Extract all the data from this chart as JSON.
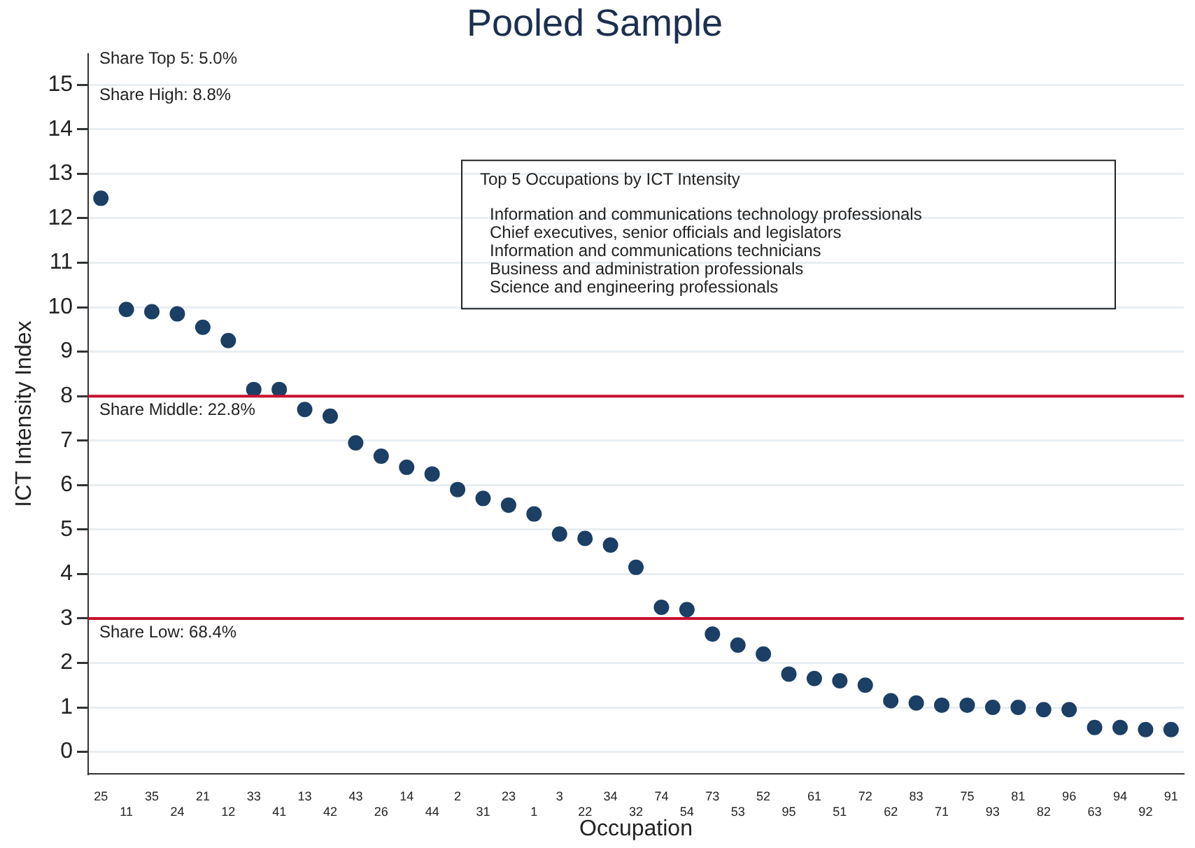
{
  "chart_data": {
    "type": "scatter",
    "title": "Pooled Sample",
    "xlabel": "Occupation",
    "ylabel": "ICT Intensity Index",
    "categories": [
      "25",
      "11",
      "35",
      "24",
      "21",
      "12",
      "33",
      "41",
      "13",
      "42",
      "43",
      "26",
      "14",
      "44",
      "2",
      "31",
      "23",
      "1",
      "3",
      "22",
      "34",
      "32",
      "74",
      "54",
      "73",
      "53",
      "52",
      "95",
      "61",
      "51",
      "72",
      "62",
      "83",
      "71",
      "75",
      "93",
      "81",
      "82",
      "96",
      "63",
      "94",
      "92",
      "91"
    ],
    "series": [
      {
        "color": "#1c3f66",
        "values": [
          12.45,
          9.95,
          9.9,
          9.85,
          9.55,
          9.25,
          8.15,
          8.15,
          7.7,
          7.55,
          6.95,
          6.65,
          6.4,
          6.25,
          5.9,
          5.7,
          5.55,
          5.35,
          4.9,
          4.8,
          4.65,
          4.15,
          3.25,
          3.2,
          2.65,
          2.4,
          2.2,
          1.75,
          1.65,
          1.6,
          1.5,
          1.15,
          1.1,
          1.05,
          1.05,
          1.0,
          1.0,
          0.95,
          0.95,
          0.55,
          0.55,
          0.5,
          0.5
        ]
      }
    ],
    "ylim": [
      -0.5,
      15.7
    ],
    "yticks": [
      0,
      1,
      2,
      3,
      4,
      5,
      6,
      7,
      8,
      9,
      10,
      11,
      12,
      13,
      14,
      15
    ],
    "ref_lines": [
      {
        "axis": "y",
        "value": 8,
        "color": "#c8102e"
      },
      {
        "axis": "y",
        "value": 3,
        "color": "#c8102e"
      }
    ],
    "annotations": [
      "Share Top 5: 5.0%",
      "Share High: 8.8%",
      "Share Middle: 22.8%",
      "Share Low: 68.4%",
      "Top 5 Occupations by ICT Intensity",
      "Information and communications technology professionals",
      "Chief executives, senior officials and legislators",
      "Information and communications technicians",
      "Business and administration professionals",
      "Science and engineering professionals"
    ],
    "grid": "y",
    "legend": false,
    "marker": "circle"
  }
}
